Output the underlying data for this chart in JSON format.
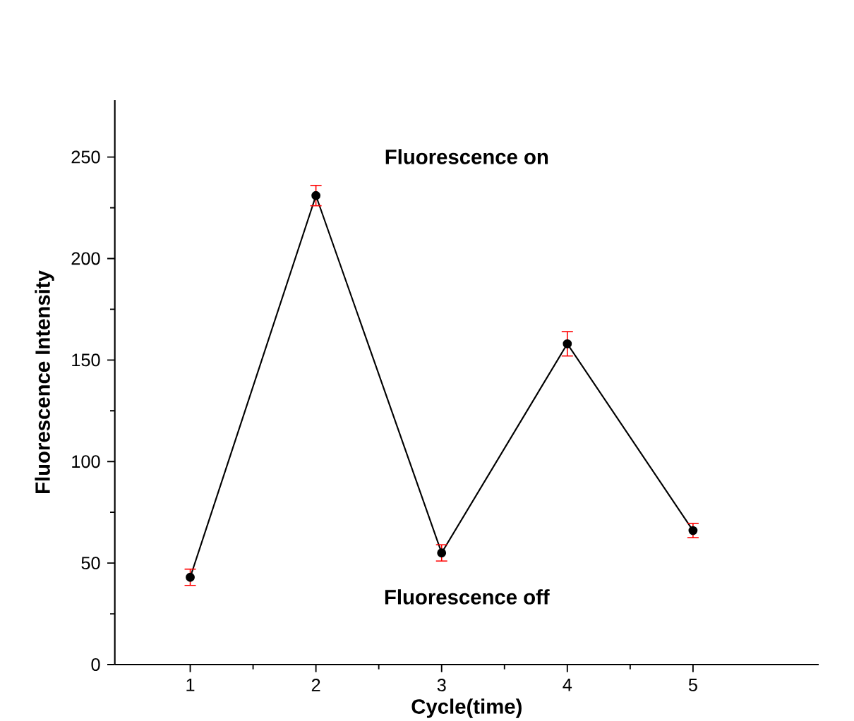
{
  "chart_data": {
    "type": "line",
    "xlabel": "Cycle(time)",
    "ylabel": "Fluorescence Intensity",
    "x": [
      1,
      2,
      3,
      4,
      5
    ],
    "series": [
      {
        "color": "#000000",
        "values": [
          43,
          231,
          55,
          158,
          66
        ],
        "errors": [
          4,
          5,
          4,
          6,
          3.5
        ]
      }
    ],
    "xlim": [
      0.4,
      6.0
    ],
    "ylim": [
      0,
      278
    ],
    "xticks": [
      1,
      2,
      3,
      4,
      5
    ],
    "yticks": [
      0,
      50,
      100,
      150,
      200,
      250
    ],
    "marker": "circle",
    "line_style": "solid",
    "grid": false,
    "annotations": [
      "Fluorescence on",
      "Fluorescence off"
    ]
  }
}
